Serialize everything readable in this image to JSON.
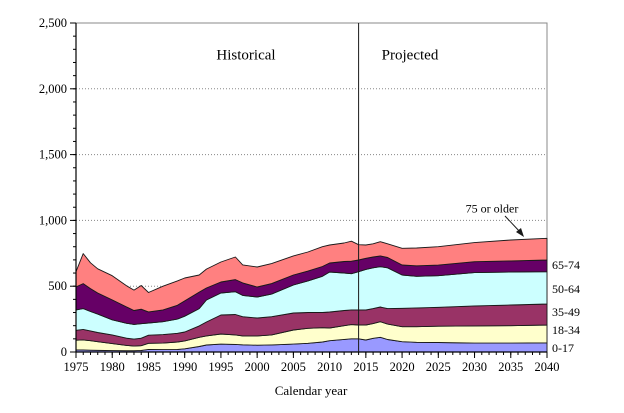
{
  "chart": {
    "zone_left_label": "Historical",
    "zone_right_label": "Projected",
    "xlabel": "Calendar year"
  },
  "chart_data": {
    "type": "area",
    "stacked": true,
    "title": "",
    "xlabel": "Calendar year",
    "ylabel": "",
    "xlim": [
      1975,
      2040
    ],
    "ylim": [
      0,
      2500
    ],
    "grid": "horizontal-dotted",
    "divider_x": 2014,
    "divider_left_label": "Historical",
    "divider_right_label": "Projected",
    "xticks": [
      1975,
      1980,
      1985,
      1990,
      1995,
      2000,
      2005,
      2010,
      2015,
      2020,
      2025,
      2030,
      2035,
      2040
    ],
    "yticks": [
      0,
      500,
      1000,
      1500,
      2000,
      2500
    ],
    "ytick_labels": [
      "0",
      "500",
      "1,000",
      "1,500",
      "2,000",
      "2,500"
    ],
    "x": [
      1975,
      1976,
      1977,
      1978,
      1980,
      1982,
      1983,
      1984,
      1985,
      1987,
      1989,
      1990,
      1992,
      1993,
      1995,
      1997,
      1998,
      2000,
      2002,
      2005,
      2007,
      2009,
      2010,
      2012,
      2013,
      2014,
      2015,
      2016,
      2017,
      2018,
      2020,
      2022,
      2025,
      2030,
      2035,
      2040
    ],
    "series": [
      {
        "name": "0-17",
        "color": "#9999FF",
        "values": [
          15,
          15,
          14,
          13,
          11,
          10,
          10,
          12,
          20,
          18,
          20,
          24,
          42,
          53,
          60,
          58,
          55,
          52,
          54,
          60,
          66,
          76,
          86,
          96,
          100,
          100,
          91,
          104,
          112,
          95,
          78,
          74,
          72,
          68,
          68,
          70
        ]
      },
      {
        "name": "18-34",
        "color": "#FFFFCC",
        "values": [
          75,
          77,
          72,
          65,
          53,
          40,
          35,
          36,
          46,
          50,
          56,
          60,
          70,
          69,
          77,
          72,
          67,
          70,
          76,
          107,
          114,
          109,
          96,
          104,
          108,
          105,
          114,
          112,
          118,
          117,
          114,
          118,
          124,
          130,
          132,
          135
        ]
      },
      {
        "name": "35-49",
        "color": "#993366",
        "values": [
          75,
          80,
          74,
          70,
          66,
          55,
          53,
          57,
          62,
          64,
          66,
          68,
          86,
          106,
          144,
          155,
          146,
          136,
          138,
          129,
          120,
          115,
          122,
          115,
          112,
          114,
          114,
          114,
          112,
          118,
          140,
          143,
          144,
          152,
          157,
          160
        ]
      },
      {
        "name": "50-64",
        "color": "#CCFFFF",
        "values": [
          155,
          158,
          148,
          140,
          115,
          113,
          112,
          110,
          92,
          98,
          108,
          120,
          132,
          167,
          167,
          173,
          162,
          160,
          172,
          213,
          240,
          275,
          304,
          285,
          275,
          291,
          309,
          310,
          306,
          310,
          253,
          240,
          240,
          253,
          251,
          245
        ]
      },
      {
        "name": "65-74",
        "color": "#660066",
        "values": [
          175,
          190,
          174,
          160,
          151,
          124,
          105,
          110,
          85,
          90,
          105,
          116,
          125,
          91,
          84,
          92,
          95,
          76,
          80,
          76,
          75,
          75,
          68,
          88,
          95,
          89,
          84,
          82,
          82,
          78,
          76,
          80,
          80,
          83,
          84,
          89
        ]
      },
      {
        "name": "75 or older",
        "color": "#FF8080",
        "values": [
          115,
          228,
          196,
          184,
          184,
          160,
          155,
          180,
          147,
          180,
          185,
          174,
          130,
          144,
          152,
          172,
          137,
          152,
          152,
          145,
          145,
          150,
          137,
          140,
          152,
          116,
          101,
          100,
          108,
          104,
          127,
          135,
          140,
          145,
          159,
          165
        ]
      }
    ],
    "legend_position": "right-edge-labels",
    "annotation": {
      "text": "75 or older",
      "points_to_series": "75 or older"
    }
  }
}
